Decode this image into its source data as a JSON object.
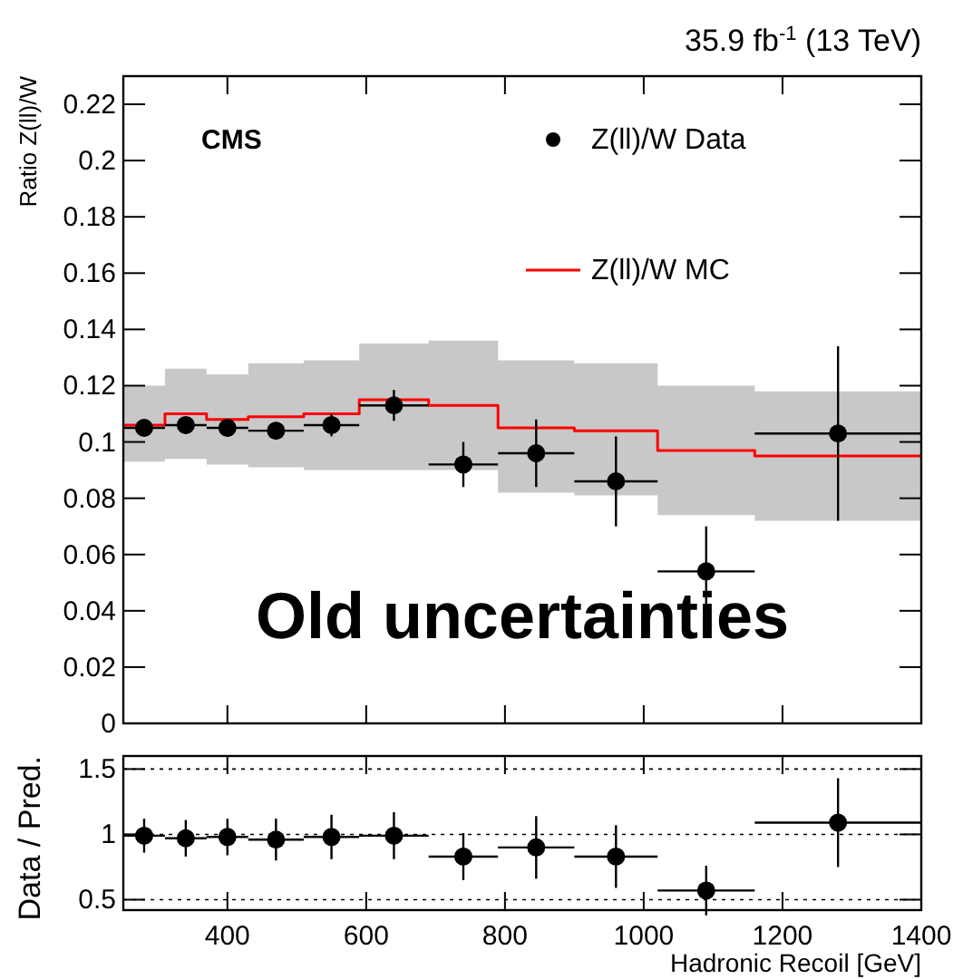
{
  "chart_data": [
    {
      "type": "scatter",
      "title": "35.9 fb$^{-1}$ (13 TeV)",
      "ylabel": "Ratio Z(ll)/W",
      "annotations": [
        "CMS",
        "Old uncertainties"
      ],
      "legend": "top right",
      "tick_labels": "y",
      "xlim": [
        250,
        1400
      ],
      "xticks": [
        400,
        600,
        800,
        1000,
        1200,
        1400
      ],
      "ylim": [
        0,
        0.23
      ],
      "yticks": [
        0,
        0.02,
        0.04,
        0.06,
        0.08,
        0.1,
        0.12,
        0.14,
        0.16,
        0.18,
        0.2,
        0.22
      ],
      "series": [
        {
          "name": "Z(ll)/W Data",
          "marker": "circle",
          "color": "#000000",
          "x": [
            280,
            340,
            400,
            470,
            550,
            640,
            740,
            845,
            960,
            1090,
            1280
          ],
          "values": [
            0.105,
            0.106,
            0.105,
            0.104,
            0.106,
            0.113,
            0.092,
            0.096,
            0.086,
            0.054,
            0.103
          ],
          "errors": [
            0.003,
            0.003,
            0.003,
            0.003,
            0.004,
            0.0055,
            0.008,
            0.012,
            0.016,
            0.016,
            0.031
          ],
          "xerrors": [
            30,
            30,
            30,
            40,
            40,
            50,
            50,
            55,
            60,
            70,
            120
          ]
        },
        {
          "name": "Z(ll)/W MC",
          "type": "step",
          "color": "#ff0000",
          "x": [
            250,
            310,
            370,
            430,
            510,
            590,
            690,
            790,
            900,
            1020,
            1160,
            1400
          ],
          "values": [
            0.106,
            0.11,
            0.108,
            0.109,
            0.11,
            0.115,
            0.113,
            0.105,
            0.104,
            0.097,
            0.095,
            0.095
          ],
          "lower": [
            0.093,
            0.094,
            0.092,
            0.091,
            0.09,
            0.09,
            0.09,
            0.082,
            0.081,
            0.074,
            0.072,
            0.072
          ],
          "upper": [
            0.12,
            0.126,
            0.124,
            0.128,
            0.129,
            0.135,
            0.136,
            0.129,
            0.128,
            0.12,
            0.118,
            0.118
          ]
        }
      ]
    },
    {
      "type": "scatter",
      "xlabel": "Hadronic Recoil [GeV]",
      "ylabel": "Data / Pred.",
      "grid": "y",
      "line_style": "dotted",
      "marker": "circle",
      "xlim": [
        250,
        1400
      ],
      "xticks": [
        400,
        600,
        800,
        1000,
        1200,
        1400
      ],
      "ylim": [
        0.42,
        1.6
      ],
      "yticks": [
        0.5,
        1,
        1.5
      ],
      "series": [
        {
          "color": "#000000",
          "x": [
            280,
            340,
            400,
            470,
            550,
            640,
            740,
            845,
            960,
            1090,
            1280
          ],
          "values": [
            0.99,
            0.97,
            0.98,
            0.96,
            0.98,
            0.99,
            0.83,
            0.9,
            0.83,
            0.57,
            1.09
          ],
          "errors": [
            0.13,
            0.14,
            0.14,
            0.16,
            0.17,
            0.18,
            0.18,
            0.24,
            0.24,
            0.19,
            0.34
          ],
          "xerrors": [
            30,
            30,
            30,
            40,
            40,
            50,
            50,
            55,
            60,
            70,
            120
          ]
        }
      ]
    }
  ]
}
